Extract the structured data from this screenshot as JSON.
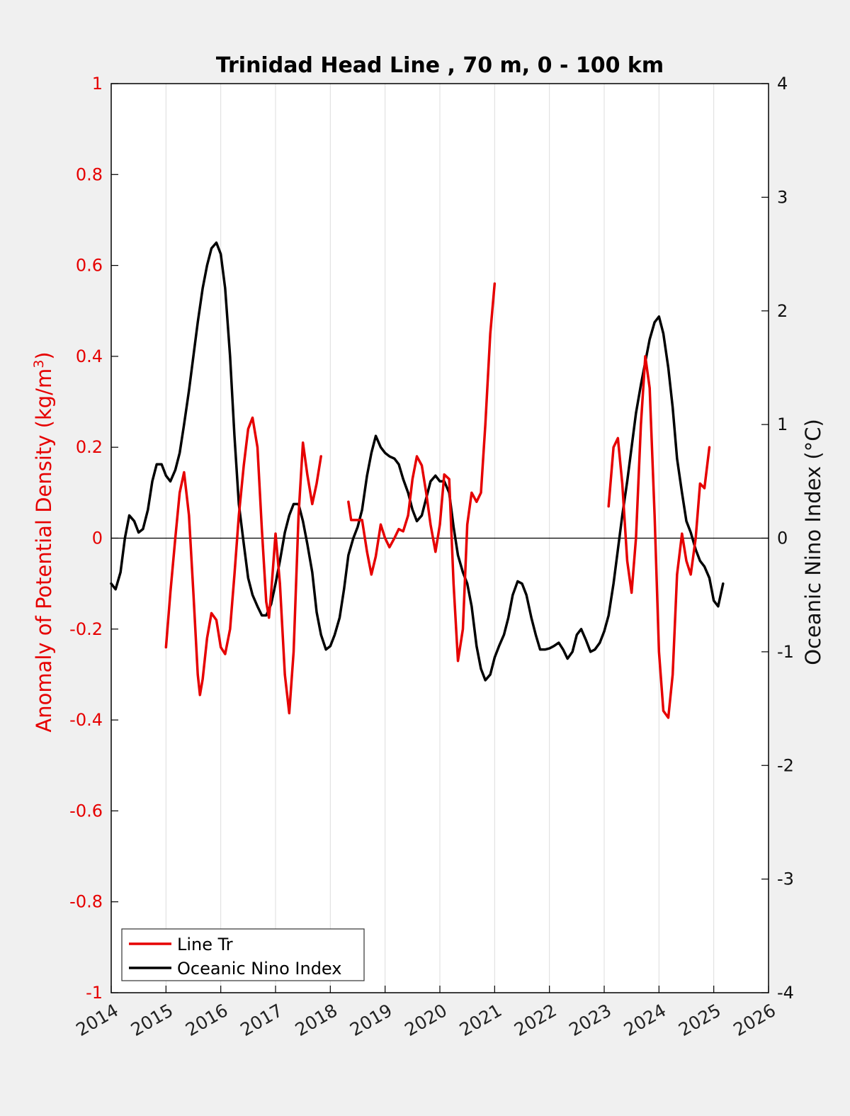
{
  "chart_data": {
    "type": "line",
    "title": "Trinidad Head Line , 70 m, 0 - 100 km",
    "ylabel_left": {
      "main": "Anomaly of Potential Density (kg/m",
      "sup": "3",
      "close": ")"
    },
    "ylabel_right": "Oceanic Nino Index (°C)",
    "xlim": [
      2014,
      2026
    ],
    "ylim_left": [
      -1,
      1
    ],
    "ylim_right": [
      -4,
      4
    ],
    "x_ticks": [
      "2014",
      "2015",
      "2016",
      "2017",
      "2018",
      "2019",
      "2020",
      "2021",
      "2022",
      "2023",
      "2024",
      "2025",
      "2026"
    ],
    "y_ticks_left": [
      "1",
      "0.8",
      "0.6",
      "0.4",
      "0.2",
      "0",
      "-0.2",
      "-0.4",
      "-0.6",
      "-0.8",
      "-1"
    ],
    "y_ticks_right": [
      "4",
      "3",
      "2",
      "1",
      "0",
      "-1",
      "-2",
      "-3",
      "-4"
    ],
    "grid": "vertical",
    "legend_position": "bottom-left",
    "series": [
      {
        "name": "Line Tr",
        "axis": "left",
        "color": "#e60000",
        "segments": [
          [
            [
              2015.0,
              -0.24
            ],
            [
              2015.08,
              -0.12
            ],
            [
              2015.17,
              0.0
            ],
            [
              2015.25,
              0.1
            ],
            [
              2015.33,
              0.145
            ],
            [
              2015.42,
              0.05
            ],
            [
              2015.5,
              -0.12
            ],
            [
              2015.58,
              -0.3
            ],
            [
              2015.62,
              -0.345
            ],
            [
              2015.67,
              -0.31
            ],
            [
              2015.75,
              -0.22
            ],
            [
              2015.83,
              -0.165
            ],
            [
              2015.92,
              -0.18
            ],
            [
              2016.0,
              -0.24
            ],
            [
              2016.08,
              -0.255
            ],
            [
              2016.17,
              -0.2
            ],
            [
              2016.25,
              -0.08
            ],
            [
              2016.33,
              0.05
            ],
            [
              2016.42,
              0.16
            ],
            [
              2016.5,
              0.24
            ],
            [
              2016.58,
              0.265
            ],
            [
              2016.67,
              0.2
            ],
            [
              2016.75,
              0.02
            ],
            [
              2016.83,
              -0.14
            ],
            [
              2016.88,
              -0.175
            ],
            [
              2016.92,
              -0.12
            ],
            [
              2017.0,
              0.01
            ],
            [
              2017.08,
              -0.1
            ],
            [
              2017.17,
              -0.3
            ],
            [
              2017.25,
              -0.385
            ],
            [
              2017.33,
              -0.25
            ],
            [
              2017.42,
              0.05
            ],
            [
              2017.5,
              0.21
            ],
            [
              2017.58,
              0.14
            ],
            [
              2017.67,
              0.075
            ],
            [
              2017.75,
              0.12
            ],
            [
              2017.83,
              0.18
            ]
          ],
          [
            [
              2018.33,
              0.08
            ],
            [
              2018.38,
              0.04
            ],
            [
              2018.5,
              0.04
            ],
            [
              2018.58,
              0.04
            ],
            [
              2018.67,
              -0.03
            ],
            [
              2018.75,
              -0.08
            ],
            [
              2018.83,
              -0.04
            ],
            [
              2018.92,
              0.03
            ],
            [
              2019.0,
              0.0
            ],
            [
              2019.08,
              -0.02
            ],
            [
              2019.17,
              0.0
            ],
            [
              2019.25,
              0.02
            ],
            [
              2019.33,
              0.015
            ],
            [
              2019.42,
              0.05
            ],
            [
              2019.5,
              0.13
            ],
            [
              2019.58,
              0.18
            ],
            [
              2019.67,
              0.16
            ],
            [
              2019.75,
              0.1
            ],
            [
              2019.83,
              0.03
            ],
            [
              2019.92,
              -0.03
            ],
            [
              2020.0,
              0.03
            ],
            [
              2020.08,
              0.14
            ],
            [
              2020.17,
              0.13
            ],
            [
              2020.25,
              -0.1
            ],
            [
              2020.33,
              -0.27
            ],
            [
              2020.42,
              -0.2
            ],
            [
              2020.5,
              0.03
            ],
            [
              2020.58,
              0.1
            ],
            [
              2020.67,
              0.08
            ],
            [
              2020.75,
              0.1
            ],
            [
              2020.83,
              0.25
            ],
            [
              2020.92,
              0.45
            ],
            [
              2021.0,
              0.56
            ]
          ],
          [
            [
              2023.08,
              0.07
            ],
            [
              2023.17,
              0.2
            ],
            [
              2023.25,
              0.22
            ],
            [
              2023.33,
              0.12
            ],
            [
              2023.42,
              -0.05
            ],
            [
              2023.5,
              -0.12
            ],
            [
              2023.58,
              0.0
            ],
            [
              2023.67,
              0.25
            ],
            [
              2023.75,
              0.4
            ],
            [
              2023.83,
              0.33
            ],
            [
              2023.92,
              0.05
            ],
            [
              2024.0,
              -0.25
            ],
            [
              2024.08,
              -0.38
            ],
            [
              2024.17,
              -0.395
            ],
            [
              2024.25,
              -0.3
            ],
            [
              2024.33,
              -0.08
            ],
            [
              2024.42,
              0.01
            ],
            [
              2024.5,
              -0.05
            ],
            [
              2024.58,
              -0.08
            ],
            [
              2024.67,
              0.0
            ],
            [
              2024.75,
              0.12
            ],
            [
              2024.83,
              0.11
            ],
            [
              2024.92,
              0.2
            ]
          ]
        ]
      },
      {
        "name": "Oceanic Nino Index",
        "axis": "right",
        "color": "#000000",
        "segments": [
          [
            [
              2014.0,
              -0.4
            ],
            [
              2014.08,
              -0.45
            ],
            [
              2014.17,
              -0.3
            ],
            [
              2014.25,
              0.0
            ],
            [
              2014.33,
              0.2
            ],
            [
              2014.42,
              0.15
            ],
            [
              2014.5,
              0.05
            ],
            [
              2014.58,
              0.08
            ],
            [
              2014.67,
              0.25
            ],
            [
              2014.75,
              0.5
            ],
            [
              2014.83,
              0.65
            ],
            [
              2014.92,
              0.65
            ],
            [
              2015.0,
              0.55
            ],
            [
              2015.08,
              0.5
            ],
            [
              2015.17,
              0.6
            ],
            [
              2015.25,
              0.75
            ],
            [
              2015.33,
              1.0
            ],
            [
              2015.42,
              1.3
            ],
            [
              2015.5,
              1.6
            ],
            [
              2015.58,
              1.9
            ],
            [
              2015.67,
              2.2
            ],
            [
              2015.75,
              2.4
            ],
            [
              2015.83,
              2.55
            ],
            [
              2015.92,
              2.6
            ],
            [
              2016.0,
              2.5
            ],
            [
              2016.08,
              2.2
            ],
            [
              2016.17,
              1.6
            ],
            [
              2016.25,
              0.9
            ],
            [
              2016.33,
              0.3
            ],
            [
              2016.42,
              -0.05
            ],
            [
              2016.5,
              -0.35
            ],
            [
              2016.58,
              -0.5
            ],
            [
              2016.67,
              -0.6
            ],
            [
              2016.75,
              -0.68
            ],
            [
              2016.83,
              -0.68
            ],
            [
              2016.92,
              -0.58
            ],
            [
              2017.0,
              -0.4
            ],
            [
              2017.08,
              -0.2
            ],
            [
              2017.17,
              0.05
            ],
            [
              2017.25,
              0.2
            ],
            [
              2017.33,
              0.3
            ],
            [
              2017.42,
              0.3
            ],
            [
              2017.5,
              0.15
            ],
            [
              2017.58,
              -0.05
            ],
            [
              2017.67,
              -0.3
            ],
            [
              2017.75,
              -0.65
            ],
            [
              2017.83,
              -0.85
            ],
            [
              2017.92,
              -0.98
            ],
            [
              2018.0,
              -0.95
            ],
            [
              2018.08,
              -0.85
            ],
            [
              2018.17,
              -0.7
            ],
            [
              2018.25,
              -0.45
            ],
            [
              2018.33,
              -0.15
            ],
            [
              2018.42,
              0.0
            ],
            [
              2018.5,
              0.1
            ],
            [
              2018.58,
              0.25
            ],
            [
              2018.67,
              0.55
            ],
            [
              2018.75,
              0.75
            ],
            [
              2018.83,
              0.9
            ],
            [
              2018.92,
              0.8
            ],
            [
              2019.0,
              0.75
            ],
            [
              2019.08,
              0.72
            ],
            [
              2019.17,
              0.7
            ],
            [
              2019.25,
              0.65
            ],
            [
              2019.33,
              0.52
            ],
            [
              2019.42,
              0.4
            ],
            [
              2019.5,
              0.25
            ],
            [
              2019.58,
              0.15
            ],
            [
              2019.67,
              0.2
            ],
            [
              2019.75,
              0.35
            ],
            [
              2019.83,
              0.5
            ],
            [
              2019.92,
              0.55
            ],
            [
              2020.0,
              0.5
            ],
            [
              2020.08,
              0.5
            ],
            [
              2020.17,
              0.4
            ],
            [
              2020.25,
              0.1
            ],
            [
              2020.33,
              -0.15
            ],
            [
              2020.42,
              -0.3
            ],
            [
              2020.5,
              -0.4
            ],
            [
              2020.58,
              -0.6
            ],
            [
              2020.67,
              -0.95
            ],
            [
              2020.75,
              -1.15
            ],
            [
              2020.83,
              -1.25
            ],
            [
              2020.92,
              -1.2
            ],
            [
              2021.0,
              -1.05
            ],
            [
              2021.08,
              -0.95
            ],
            [
              2021.17,
              -0.85
            ],
            [
              2021.25,
              -0.7
            ],
            [
              2021.33,
              -0.5
            ],
            [
              2021.42,
              -0.38
            ],
            [
              2021.5,
              -0.4
            ],
            [
              2021.58,
              -0.5
            ],
            [
              2021.67,
              -0.7
            ],
            [
              2021.75,
              -0.85
            ],
            [
              2021.83,
              -0.98
            ],
            [
              2021.92,
              -0.98
            ],
            [
              2022.0,
              -0.97
            ],
            [
              2022.08,
              -0.95
            ],
            [
              2022.17,
              -0.92
            ],
            [
              2022.25,
              -0.98
            ],
            [
              2022.33,
              -1.06
            ],
            [
              2022.42,
              -1.0
            ],
            [
              2022.5,
              -0.85
            ],
            [
              2022.58,
              -0.8
            ],
            [
              2022.67,
              -0.9
            ],
            [
              2022.75,
              -1.0
            ],
            [
              2022.83,
              -0.98
            ],
            [
              2022.92,
              -0.92
            ],
            [
              2023.0,
              -0.82
            ],
            [
              2023.08,
              -0.68
            ],
            [
              2023.17,
              -0.4
            ],
            [
              2023.25,
              -0.1
            ],
            [
              2023.33,
              0.2
            ],
            [
              2023.42,
              0.5
            ],
            [
              2023.5,
              0.8
            ],
            [
              2023.58,
              1.1
            ],
            [
              2023.67,
              1.35
            ],
            [
              2023.75,
              1.55
            ],
            [
              2023.83,
              1.75
            ],
            [
              2023.92,
              1.9
            ],
            [
              2024.0,
              1.95
            ],
            [
              2024.08,
              1.8
            ],
            [
              2024.17,
              1.5
            ],
            [
              2024.25,
              1.15
            ],
            [
              2024.33,
              0.7
            ],
            [
              2024.42,
              0.4
            ],
            [
              2024.5,
              0.15
            ],
            [
              2024.58,
              0.05
            ],
            [
              2024.67,
              -0.1
            ],
            [
              2024.75,
              -0.2
            ],
            [
              2024.83,
              -0.25
            ],
            [
              2024.92,
              -0.35
            ],
            [
              2025.0,
              -0.55
            ],
            [
              2025.08,
              -0.6
            ],
            [
              2025.17,
              -0.4
            ]
          ]
        ]
      }
    ]
  }
}
